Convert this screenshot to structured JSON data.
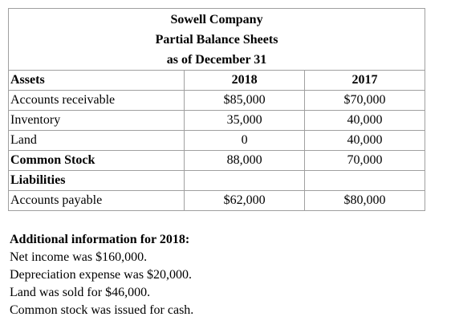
{
  "header": {
    "lines": [
      "Sowell Company",
      "Partial Balance Sheets",
      "as of December 31"
    ]
  },
  "table": {
    "columns": [
      "Assets",
      "2018",
      "2017"
    ],
    "rows": [
      [
        "Accounts receivable",
        "$85,000",
        "$70,000"
      ],
      [
        "Inventory",
        "35,000",
        "40,000"
      ],
      [
        "Land",
        "0",
        "40,000"
      ],
      [
        "Common Stock",
        "88,000",
        "70,000"
      ],
      [
        "Liabilities",
        "",
        ""
      ],
      [
        "Accounts payable",
        "$62,000",
        "$80,000"
      ]
    ]
  },
  "notes": {
    "title": "Additional information for 2018:",
    "lines": [
      "Net income was $160,000.",
      "Depreciation expense was $20,000.",
      "Land was sold for $46,000.",
      "Common stock was issued for cash."
    ]
  }
}
